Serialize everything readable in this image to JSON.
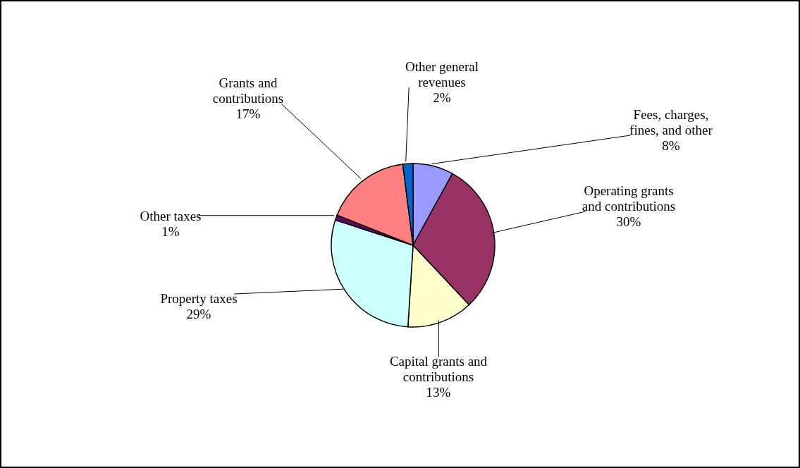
{
  "chart_data": {
    "type": "pie",
    "categories": [
      "Fees, charges, fines, and other",
      "Operating grants and contributions",
      "Capital grants and contributions",
      "Property taxes",
      "Other taxes",
      "Grants and contributions",
      "Other general revenues"
    ],
    "values": [
      8,
      30,
      13,
      29,
      1,
      17,
      2
    ],
    "value_labels": [
      "8%",
      "30%",
      "13%",
      "29%",
      "1%",
      "17%",
      "2%"
    ],
    "colors": [
      "#9999ff",
      "#993366",
      "#ffffcc",
      "#ccffff",
      "#660066",
      "#ff8080",
      "#0066cc"
    ],
    "legend": false
  }
}
